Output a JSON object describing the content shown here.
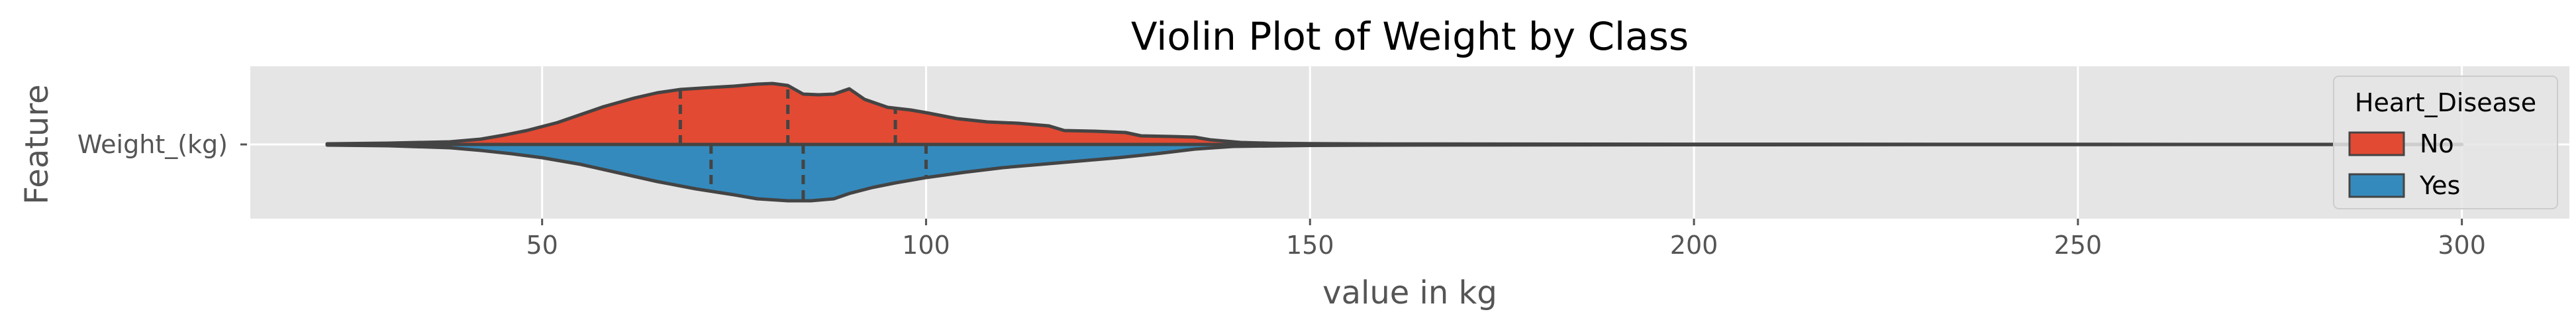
{
  "chart_data": {
    "type": "violin",
    "title": "Violin Plot of Weight by Class",
    "xlabel": "value in kg",
    "ylabel": "Feature",
    "category": "Weight_(kg)",
    "xlim": [
      12,
      314
    ],
    "xticks": [
      50,
      100,
      150,
      200,
      250,
      300
    ],
    "grid": true,
    "legend": {
      "title": "Heart_Disease",
      "placement": "right"
    },
    "series": [
      {
        "name": "No",
        "color": "#E24A33",
        "side": "upper",
        "quartiles": [
          68,
          82,
          96
        ],
        "density": [
          [
            22,
            0.01
          ],
          [
            30,
            0.02
          ],
          [
            38,
            0.04
          ],
          [
            42,
            0.08
          ],
          [
            45,
            0.14
          ],
          [
            48,
            0.21
          ],
          [
            52,
            0.33
          ],
          [
            55,
            0.45
          ],
          [
            58,
            0.57
          ],
          [
            62,
            0.7
          ],
          [
            65,
            0.78
          ],
          [
            68,
            0.83
          ],
          [
            72,
            0.86
          ],
          [
            75,
            0.88
          ],
          [
            78,
            0.91
          ],
          [
            80,
            0.92
          ],
          [
            82,
            0.89
          ],
          [
            84,
            0.76
          ],
          [
            86,
            0.75
          ],
          [
            88,
            0.76
          ],
          [
            90,
            0.84
          ],
          [
            92,
            0.68
          ],
          [
            95,
            0.56
          ],
          [
            98,
            0.52
          ],
          [
            100,
            0.48
          ],
          [
            104,
            0.39
          ],
          [
            108,
            0.34
          ],
          [
            112,
            0.32
          ],
          [
            116,
            0.28
          ],
          [
            118,
            0.21
          ],
          [
            122,
            0.2
          ],
          [
            126,
            0.18
          ],
          [
            128,
            0.13
          ],
          [
            132,
            0.12
          ],
          [
            135,
            0.11
          ],
          [
            137,
            0.07
          ],
          [
            141,
            0.03
          ],
          [
            145,
            0.018
          ],
          [
            150,
            0.012
          ],
          [
            160,
            0.008
          ],
          [
            200,
            0.004
          ],
          [
            250,
            0.002
          ],
          [
            300,
            0.001
          ]
        ]
      },
      {
        "name": "Yes",
        "color": "#348ABD",
        "side": "lower",
        "quartiles": [
          72,
          84,
          100
        ],
        "density": [
          [
            22,
            0.01
          ],
          [
            30,
            0.02
          ],
          [
            38,
            0.05
          ],
          [
            42,
            0.09
          ],
          [
            46,
            0.14
          ],
          [
            50,
            0.2
          ],
          [
            55,
            0.3
          ],
          [
            60,
            0.43
          ],
          [
            65,
            0.56
          ],
          [
            70,
            0.67
          ],
          [
            75,
            0.76
          ],
          [
            78,
            0.82
          ],
          [
            82,
            0.85
          ],
          [
            85,
            0.85
          ],
          [
            88,
            0.82
          ],
          [
            90,
            0.74
          ],
          [
            93,
            0.65
          ],
          [
            96,
            0.58
          ],
          [
            100,
            0.5
          ],
          [
            105,
            0.42
          ],
          [
            110,
            0.35
          ],
          [
            115,
            0.3
          ],
          [
            120,
            0.25
          ],
          [
            125,
            0.2
          ],
          [
            130,
            0.14
          ],
          [
            135,
            0.07
          ],
          [
            140,
            0.03
          ],
          [
            150,
            0.015
          ],
          [
            160,
            0.01
          ],
          [
            200,
            0.005
          ],
          [
            250,
            0.002
          ],
          [
            300,
            0.001
          ]
        ]
      }
    ]
  }
}
